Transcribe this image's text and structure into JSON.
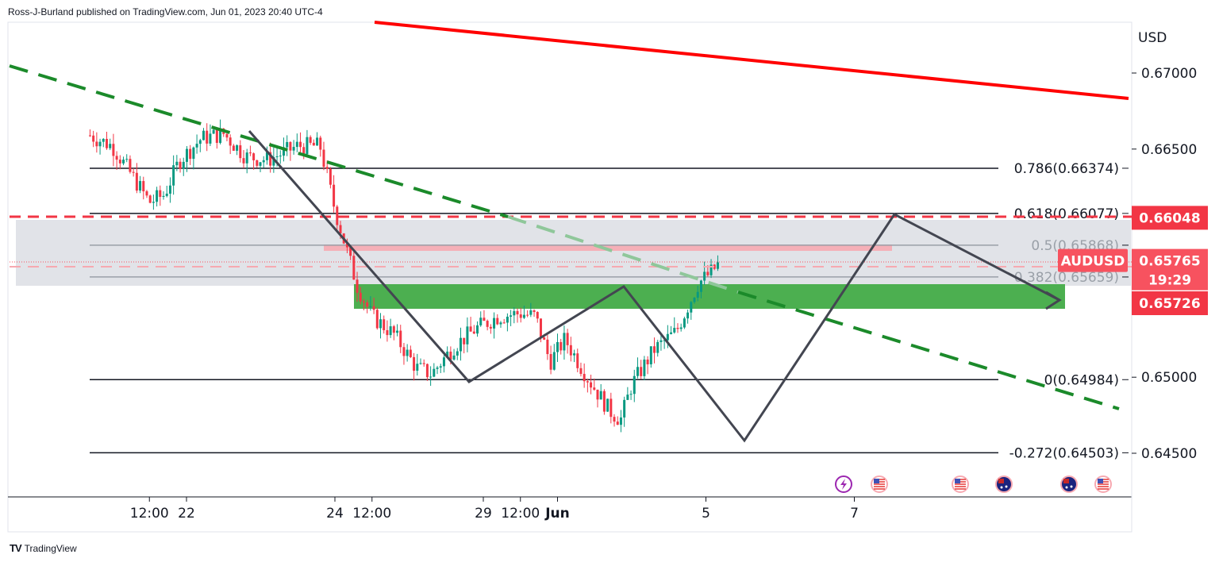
{
  "header": {
    "publisher_line": "Ross-J-Burland published on TradingView.com, Jun 01, 2023 20:40 UTC-4"
  },
  "footer": {
    "brand": "TradingView",
    "logo_icon": "tradingview-logo-icon"
  },
  "chart_data": {
    "type": "candlestick",
    "symbol": "AUDUSD",
    "currency": "USD",
    "ylim": [
      0.643,
      0.6725
    ],
    "y_ticks": [
      "0.67000",
      "0.66500",
      "0.65000",
      "0.64500"
    ],
    "y_tick_values": [
      0.67,
      0.665,
      0.65,
      0.645
    ],
    "x_ticks": [
      "12:00",
      "22",
      "24",
      "12:00",
      "29",
      "12:00",
      "Jun",
      "5",
      "7"
    ],
    "x_tick_days": [
      -0.5,
      0,
      2,
      2.5,
      4,
      4.5,
      5,
      7,
      9
    ],
    "x_range_days": [
      -1.3,
      9.7
    ],
    "fibonacci": [
      {
        "label": "0.786(0.66374)",
        "value": 0.66374
      },
      {
        "label": "0.618(0.66077)",
        "value": 0.66077
      },
      {
        "label": "0.5(0.65868)",
        "value": 0.65868
      },
      {
        "label": "0.382(0.65659)",
        "value": 0.65659
      },
      {
        "label": "0(0.64984)",
        "value": 0.64984
      },
      {
        "label": "-0.272(0.64503)",
        "value": 0.64503
      }
    ],
    "price_badges": [
      {
        "label": "0.66048",
        "value": 0.66048,
        "color": "#f23645"
      },
      {
        "symbol_label": "AUDUSD",
        "label": "0.65765",
        "countdown": "19:29",
        "value": 0.65765,
        "color": "#f7525f"
      },
      {
        "label": "0.65726",
        "value": 0.65726,
        "color": "#f23645"
      }
    ],
    "support_zone": [
      0.65535,
      0.6572
    ],
    "resistance_zone": [
      0.6561,
      0.6608
    ],
    "colors": {
      "up": "#089981",
      "down": "#f23645",
      "support": "#4caf50",
      "trend_red": "#ff0000",
      "trend_green": "#1b8a2a",
      "fib": "#131722",
      "zigzag": "#434651"
    },
    "events": [
      "lightning-event-icon",
      "us-flag-icon",
      "us-flag-icon",
      "au-flag-icon",
      "au-flag-icon",
      "us-flag-icon"
    ]
  }
}
